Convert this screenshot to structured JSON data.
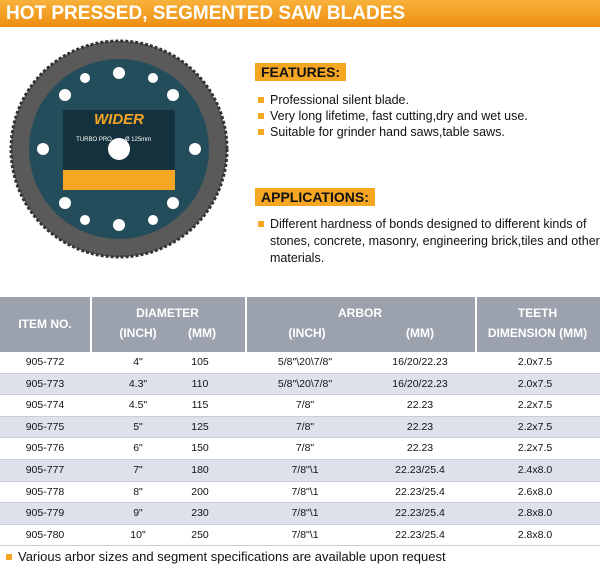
{
  "header": {
    "title": "HOT PRESSED, SEGMENTED SAW BLADES"
  },
  "blade_label": {
    "brand": "WIDER",
    "model": "TURBO PRO",
    "size": "Ø 125mm"
  },
  "features": {
    "heading": "FEATURES:",
    "items": [
      "Professional silent blade.",
      "Very long lifetime, fast cutting,dry and wet use.",
      "Suitable for grinder hand saws,table saws."
    ]
  },
  "applications": {
    "heading": "APPLICATIONS:",
    "items": [
      "Different hardness of bonds designed to different kinds of stones, concrete, masonry, engineering brick,tiles and other materials."
    ]
  },
  "table": {
    "headers": {
      "item": "ITEM NO.",
      "diameter": "DIAMETER",
      "diameter_inch": "(INCH)",
      "diameter_mm": "(MM)",
      "arbor": "ARBOR",
      "arbor_inch": "(INCH)",
      "arbor_mm": "(MM)",
      "teeth": "TEETH",
      "teeth_dimension": "DIMENSION (MM)"
    },
    "rows": [
      [
        "905-772",
        "4\"",
        "105",
        "5/8\"\\20\\7/8\"",
        "16/20/22.23",
        "2.0x7.5"
      ],
      [
        "905-773",
        "4.3\"",
        "110",
        "5/8\"\\20\\7/8\"",
        "16/20/22.23",
        "2.0x7.5"
      ],
      [
        "905-774",
        "4.5\"",
        "115",
        "7/8\"",
        "22.23",
        "2.2x7.5"
      ],
      [
        "905-775",
        "5\"",
        "125",
        "7/8\"",
        "22.23",
        "2.2x7.5"
      ],
      [
        "905-776",
        "6\"",
        "150",
        "7/8\"",
        "22.23",
        "2.2x7.5"
      ],
      [
        "905-777",
        "7\"",
        "180",
        "7/8\"\\1",
        "22.23/25.4",
        "2.4x8.0"
      ],
      [
        "905-778",
        "8\"",
        "200",
        "7/8\"\\1",
        "22.23/25.4",
        "2.6x8.0"
      ],
      [
        "905-779",
        "9\"",
        "230",
        "7/8\"\\1",
        "22.23/25.4",
        "2.8x8.0"
      ],
      [
        "905-780",
        "10\"",
        "250",
        "7/8\"\\1",
        "22.23/25.4",
        "2.8x8.0"
      ]
    ]
  },
  "footnote": "Various arbor sizes and segment specifications are available upon request"
}
